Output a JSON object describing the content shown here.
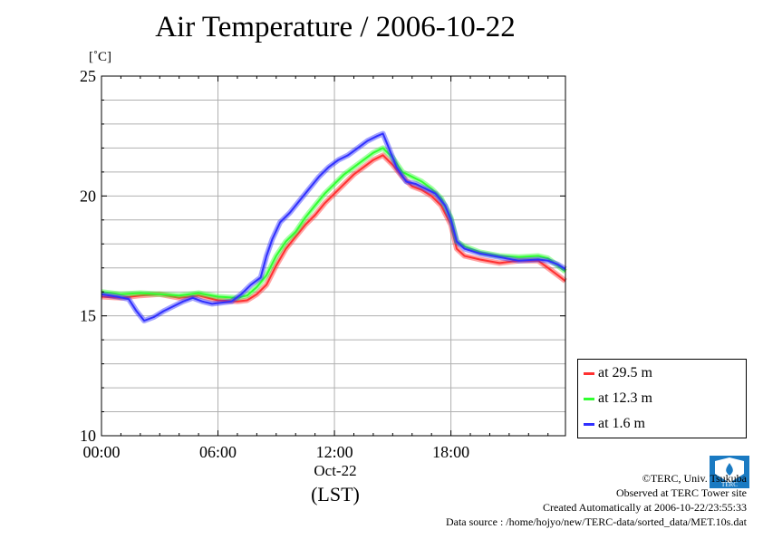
{
  "chart_data": {
    "type": "line",
    "title": "Air Temperature / 2006-10-22",
    "ylabel": "[˚C]",
    "xlabel_date": "Oct-22",
    "xlabel_tz": "(LST)",
    "ylim": [
      10,
      25
    ],
    "xlim": [
      0,
      23.9
    ],
    "x_unit": "hours",
    "y_ticks": [
      10,
      15,
      20,
      25
    ],
    "y_minor_step": 1,
    "x_ticks": [
      {
        "value": 0,
        "label": "00:00"
      },
      {
        "value": 6,
        "label": "06:00"
      },
      {
        "value": 12,
        "label": "12:00"
      },
      {
        "value": 18,
        "label": "18:00"
      }
    ],
    "grid": true,
    "legend_position": "bottom-right outside",
    "series": [
      {
        "name": "at 29.5 m",
        "color": "#ff3030",
        "points": [
          [
            0,
            15.8
          ],
          [
            1,
            15.75
          ],
          [
            2,
            15.85
          ],
          [
            3,
            15.9
          ],
          [
            4,
            15.75
          ],
          [
            5,
            15.85
          ],
          [
            6,
            15.65
          ],
          [
            7,
            15.6
          ],
          [
            7.5,
            15.65
          ],
          [
            8,
            15.9
          ],
          [
            8.5,
            16.3
          ],
          [
            9,
            17.1
          ],
          [
            9.5,
            17.8
          ],
          [
            10,
            18.3
          ],
          [
            10.5,
            18.8
          ],
          [
            11,
            19.2
          ],
          [
            11.5,
            19.7
          ],
          [
            12,
            20.1
          ],
          [
            12.5,
            20.5
          ],
          [
            13,
            20.9
          ],
          [
            13.5,
            21.2
          ],
          [
            14,
            21.5
          ],
          [
            14.5,
            21.7
          ],
          [
            15,
            21.3
          ],
          [
            15.5,
            20.8
          ],
          [
            16,
            20.4
          ],
          [
            16.5,
            20.25
          ],
          [
            17,
            20.0
          ],
          [
            17.5,
            19.6
          ],
          [
            18,
            18.8
          ],
          [
            18.3,
            17.8
          ],
          [
            18.7,
            17.5
          ],
          [
            19.5,
            17.35
          ],
          [
            20.5,
            17.2
          ],
          [
            21.5,
            17.3
          ],
          [
            22.5,
            17.3
          ],
          [
            23,
            17.0
          ],
          [
            23.5,
            16.7
          ],
          [
            23.9,
            16.45
          ]
        ]
      },
      {
        "name": "at 12.3 m",
        "color": "#30ff30",
        "points": [
          [
            0,
            16.0
          ],
          [
            1,
            15.9
          ],
          [
            2,
            15.95
          ],
          [
            3,
            15.9
          ],
          [
            4,
            15.85
          ],
          [
            5,
            15.95
          ],
          [
            6,
            15.8
          ],
          [
            7,
            15.75
          ],
          [
            7.5,
            15.85
          ],
          [
            8,
            16.2
          ],
          [
            8.5,
            16.7
          ],
          [
            9,
            17.5
          ],
          [
            9.5,
            18.1
          ],
          [
            10,
            18.5
          ],
          [
            10.5,
            19.1
          ],
          [
            11,
            19.6
          ],
          [
            11.5,
            20.1
          ],
          [
            12,
            20.5
          ],
          [
            12.5,
            20.9
          ],
          [
            13,
            21.2
          ],
          [
            13.5,
            21.5
          ],
          [
            14,
            21.8
          ],
          [
            14.5,
            22.0
          ],
          [
            15,
            21.6
          ],
          [
            15.5,
            21.0
          ],
          [
            16,
            20.8
          ],
          [
            16.5,
            20.6
          ],
          [
            17,
            20.3
          ],
          [
            17.5,
            19.9
          ],
          [
            18,
            19.1
          ],
          [
            18.3,
            18.1
          ],
          [
            18.7,
            17.9
          ],
          [
            19.5,
            17.65
          ],
          [
            20.5,
            17.5
          ],
          [
            21.5,
            17.45
          ],
          [
            22.5,
            17.5
          ],
          [
            23,
            17.4
          ],
          [
            23.5,
            17.1
          ],
          [
            23.9,
            16.85
          ]
        ]
      },
      {
        "name": "at 1.6 m",
        "color": "#3030ff",
        "points": [
          [
            0,
            15.9
          ],
          [
            0.8,
            15.8
          ],
          [
            1.4,
            15.7
          ],
          [
            1.8,
            15.2
          ],
          [
            2.2,
            14.8
          ],
          [
            2.7,
            14.95
          ],
          [
            3.2,
            15.2
          ],
          [
            3.7,
            15.4
          ],
          [
            4.2,
            15.6
          ],
          [
            4.7,
            15.75
          ],
          [
            5.2,
            15.6
          ],
          [
            5.7,
            15.5
          ],
          [
            6.2,
            15.55
          ],
          [
            6.7,
            15.6
          ],
          [
            7.2,
            15.9
          ],
          [
            7.7,
            16.3
          ],
          [
            8.2,
            16.6
          ],
          [
            8.5,
            17.5
          ],
          [
            8.8,
            18.2
          ],
          [
            9.2,
            18.9
          ],
          [
            9.7,
            19.3
          ],
          [
            10.2,
            19.8
          ],
          [
            10.7,
            20.3
          ],
          [
            11.2,
            20.8
          ],
          [
            11.7,
            21.2
          ],
          [
            12.2,
            21.5
          ],
          [
            12.7,
            21.7
          ],
          [
            13.2,
            22.0
          ],
          [
            13.7,
            22.3
          ],
          [
            14.2,
            22.5
          ],
          [
            14.5,
            22.6
          ],
          [
            14.8,
            22.0
          ],
          [
            15.2,
            21.2
          ],
          [
            15.7,
            20.6
          ],
          [
            16.2,
            20.5
          ],
          [
            16.7,
            20.3
          ],
          [
            17.2,
            20.1
          ],
          [
            17.7,
            19.6
          ],
          [
            18.0,
            19.0
          ],
          [
            18.3,
            18.1
          ],
          [
            18.7,
            17.8
          ],
          [
            19.5,
            17.6
          ],
          [
            20.5,
            17.45
          ],
          [
            21.5,
            17.3
          ],
          [
            22.5,
            17.35
          ],
          [
            23,
            17.3
          ],
          [
            23.5,
            17.15
          ],
          [
            23.9,
            16.95
          ]
        ]
      }
    ]
  },
  "credits": {
    "copyright": "©TERC, Univ. Tsukuba",
    "observed": "Observed at TERC Tower site",
    "created": "Created Automatically at 2006-10-22/23:55:33",
    "source": "Data source : /home/hojyo/new/TERC-data/sorted_data/MET.10s.dat"
  },
  "logo": {
    "text": "TERC",
    "color": "#1a7ac2",
    "icon": "terc-logo-icon"
  }
}
